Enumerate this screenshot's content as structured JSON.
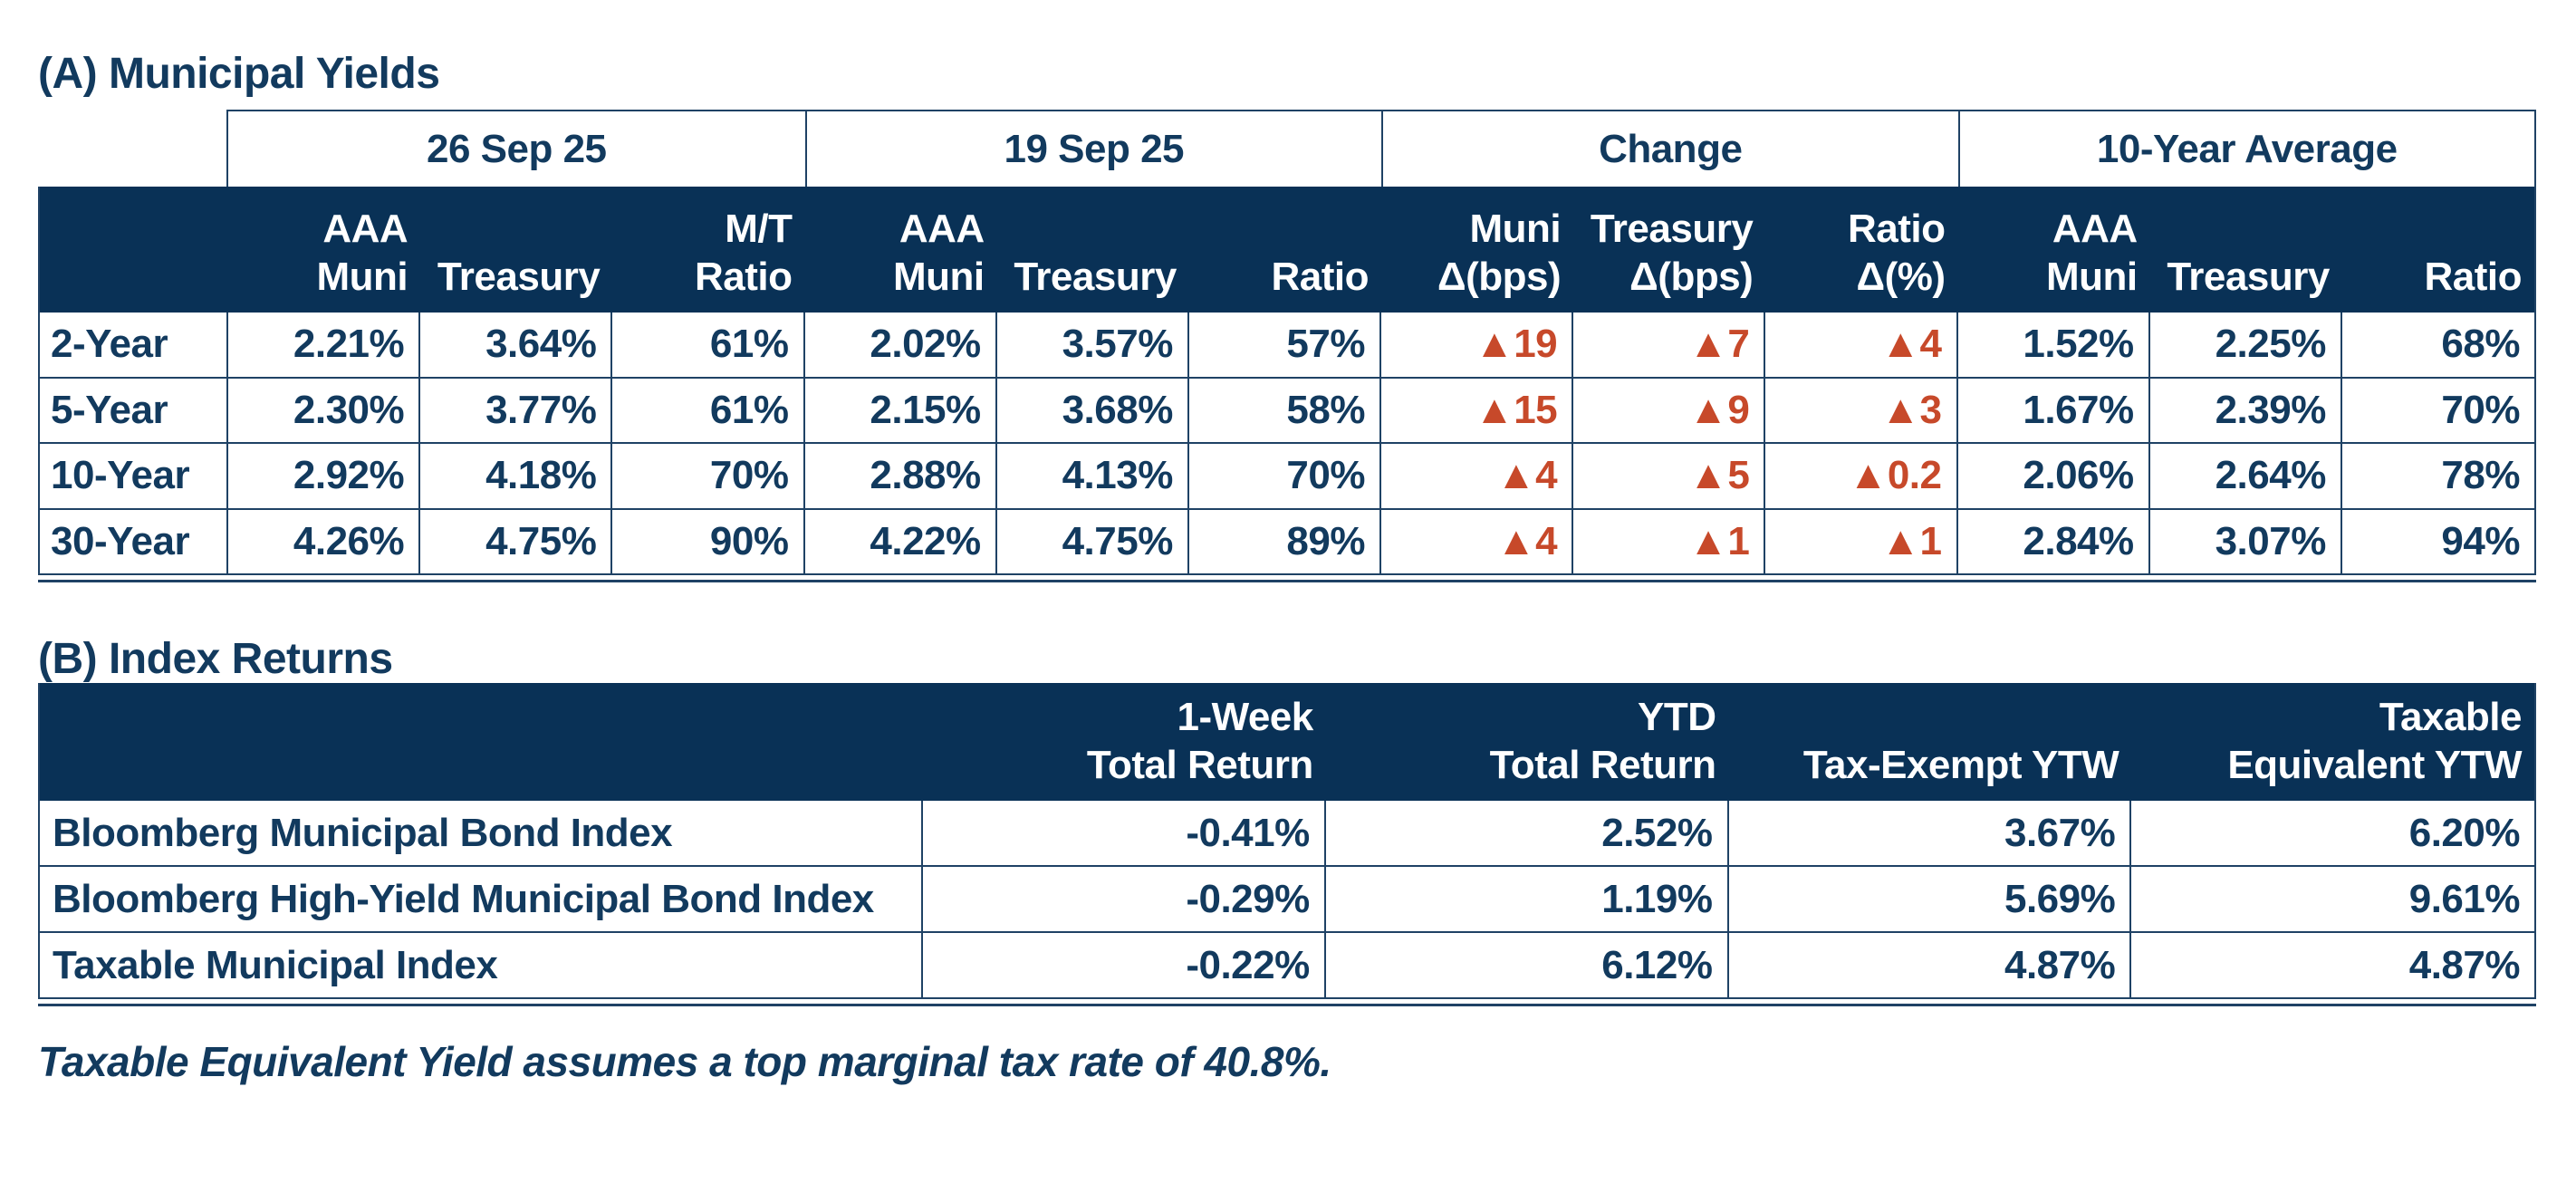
{
  "colors": {
    "header_background": "#093156",
    "text": "#123a5e",
    "grid_line": "#1f4265",
    "change_orange": "#c7492a"
  },
  "section_a": {
    "title": "(A) Municipal Yields",
    "group_headers": [
      "26 Sep 25",
      "19 Sep 25",
      "Change",
      "10-Year Average"
    ],
    "column_headers": [
      "",
      "AAA\nMuni",
      "Treasury",
      "M/T\nRatio",
      "AAA\nMuni",
      "Treasury",
      "Ratio",
      "Muni\nΔ(bps)",
      "Treasury\nΔ(bps)",
      "Ratio\nΔ(%)",
      "AAA\nMuni",
      "Treasury",
      "Ratio"
    ],
    "rows": [
      {
        "label": "2-Year",
        "cells": [
          "2.21%",
          "3.64%",
          "61%",
          "2.02%",
          "3.57%",
          "57%",
          "▲19",
          "▲7",
          "▲4",
          "1.52%",
          "2.25%",
          "68%"
        ]
      },
      {
        "label": "5-Year",
        "cells": [
          "2.30%",
          "3.77%",
          "61%",
          "2.15%",
          "3.68%",
          "58%",
          "▲15",
          "▲9",
          "▲3",
          "1.67%",
          "2.39%",
          "70%"
        ]
      },
      {
        "label": "10-Year",
        "cells": [
          "2.92%",
          "4.18%",
          "70%",
          "2.88%",
          "4.13%",
          "70%",
          "▲4",
          "▲5",
          "▲0.2",
          "2.06%",
          "2.64%",
          "78%"
        ]
      },
      {
        "label": "30-Year",
        "cells": [
          "4.26%",
          "4.75%",
          "90%",
          "4.22%",
          "4.75%",
          "89%",
          "▲4",
          "▲1",
          "▲1",
          "2.84%",
          "3.07%",
          "94%"
        ]
      }
    ]
  },
  "section_b": {
    "title": "(B) Index Returns",
    "column_headers": [
      "",
      "1-Week\nTotal Return",
      "YTD\nTotal Return",
      "Tax-Exempt YTW",
      "Taxable\nEquivalent YTW"
    ],
    "rows": [
      {
        "label": "Bloomberg Municipal Bond Index",
        "cells": [
          "-0.41%",
          "2.52%",
          "3.67%",
          "6.20%"
        ]
      },
      {
        "label": "Bloomberg High-Yield Municipal Bond Index",
        "cells": [
          "-0.29%",
          "1.19%",
          "5.69%",
          "9.61%"
        ]
      },
      {
        "label": "Taxable Municipal Index",
        "cells": [
          "-0.22%",
          "6.12%",
          "4.87%",
          "4.87%"
        ]
      }
    ]
  },
  "footnote": "Taxable Equivalent Yield assumes a top marginal tax rate of 40.8%."
}
